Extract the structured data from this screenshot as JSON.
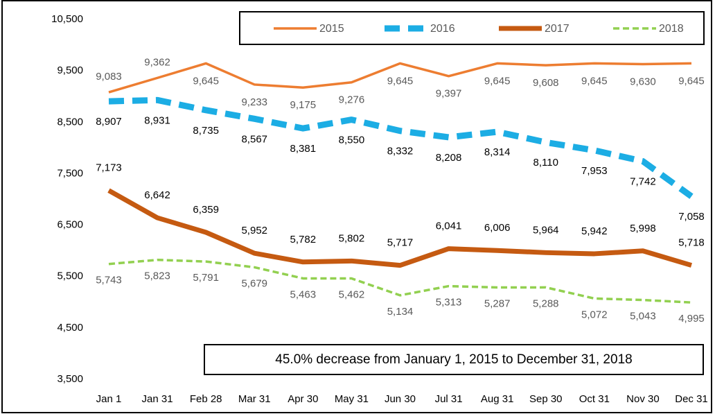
{
  "chart_data": {
    "type": "line",
    "categories": [
      "Jan 1",
      "Jan 31",
      "Feb 28",
      "Mar 31",
      "Apr 30",
      "May 31",
      "Jun 30",
      "Jul 31",
      "Aug 31",
      "Sep 30",
      "Oct 31",
      "Nov 30",
      "Dec 31"
    ],
    "series": [
      {
        "name": "2015",
        "color": "#ed7d31",
        "values": [
          9083,
          9362,
          9645,
          9233,
          9175,
          9276,
          9645,
          9397,
          9645,
          9608,
          9645,
          9630,
          9645
        ],
        "value_labels": [
          "9,083",
          "9,362",
          "9,645",
          "9,233",
          "9,175",
          "9,276",
          "9,645",
          "9,397",
          "9,645",
          "9,608",
          "9,645",
          "9,630",
          "9,645"
        ]
      },
      {
        "name": "2016",
        "color": "#1cade4",
        "values": [
          8907,
          8931,
          8735,
          8567,
          8381,
          8550,
          8332,
          8208,
          8314,
          8110,
          7953,
          7742,
          7058
        ],
        "value_labels": [
          "8,907",
          "8,931",
          "8,735",
          "8,567",
          "8,381",
          "8,550",
          "8,332",
          "8,208",
          "8,314",
          "8,110",
          "7,953",
          "7,742",
          "7,058"
        ]
      },
      {
        "name": "2017",
        "color": "#c55a11",
        "values": [
          7173,
          6642,
          6359,
          5952,
          5782,
          5802,
          5717,
          6041,
          6006,
          5964,
          5942,
          5998,
          5718
        ],
        "value_labels": [
          "7,173",
          "6,642",
          "6,359",
          "5,952",
          "5,782",
          "5,802",
          "5,717",
          "6,041",
          "6,006",
          "5,964",
          "5,942",
          "5,998",
          "5,718"
        ]
      },
      {
        "name": "2018",
        "color": "#92d050",
        "values": [
          5743,
          5823,
          5791,
          5679,
          5463,
          5462,
          5134,
          5313,
          5287,
          5288,
          5072,
          5043,
          4995
        ],
        "value_labels": [
          "5,743",
          "5,823",
          "5,791",
          "5,679",
          "5,463",
          "5,462",
          "5,134",
          "5,313",
          "5,287",
          "5,288",
          "5,072",
          "5,043",
          "4,995"
        ]
      }
    ],
    "ylim": [
      3500,
      10500
    ],
    "yticks": [
      {
        "value": 3500,
        "label": "3,500"
      },
      {
        "value": 4500,
        "label": "4,500"
      },
      {
        "value": 5500,
        "label": "5,500"
      },
      {
        "value": 6500,
        "label": "6,500"
      },
      {
        "value": 7500,
        "label": "7,500"
      },
      {
        "value": 8500,
        "label": "8,500"
      },
      {
        "value": 9500,
        "label": "9,500"
      },
      {
        "value": 10500,
        "label": "10,500"
      }
    ],
    "annotation": "45.0% decrease from January  1, 2015 to December 31, 2018",
    "legend": "top-right",
    "grid": false
  }
}
